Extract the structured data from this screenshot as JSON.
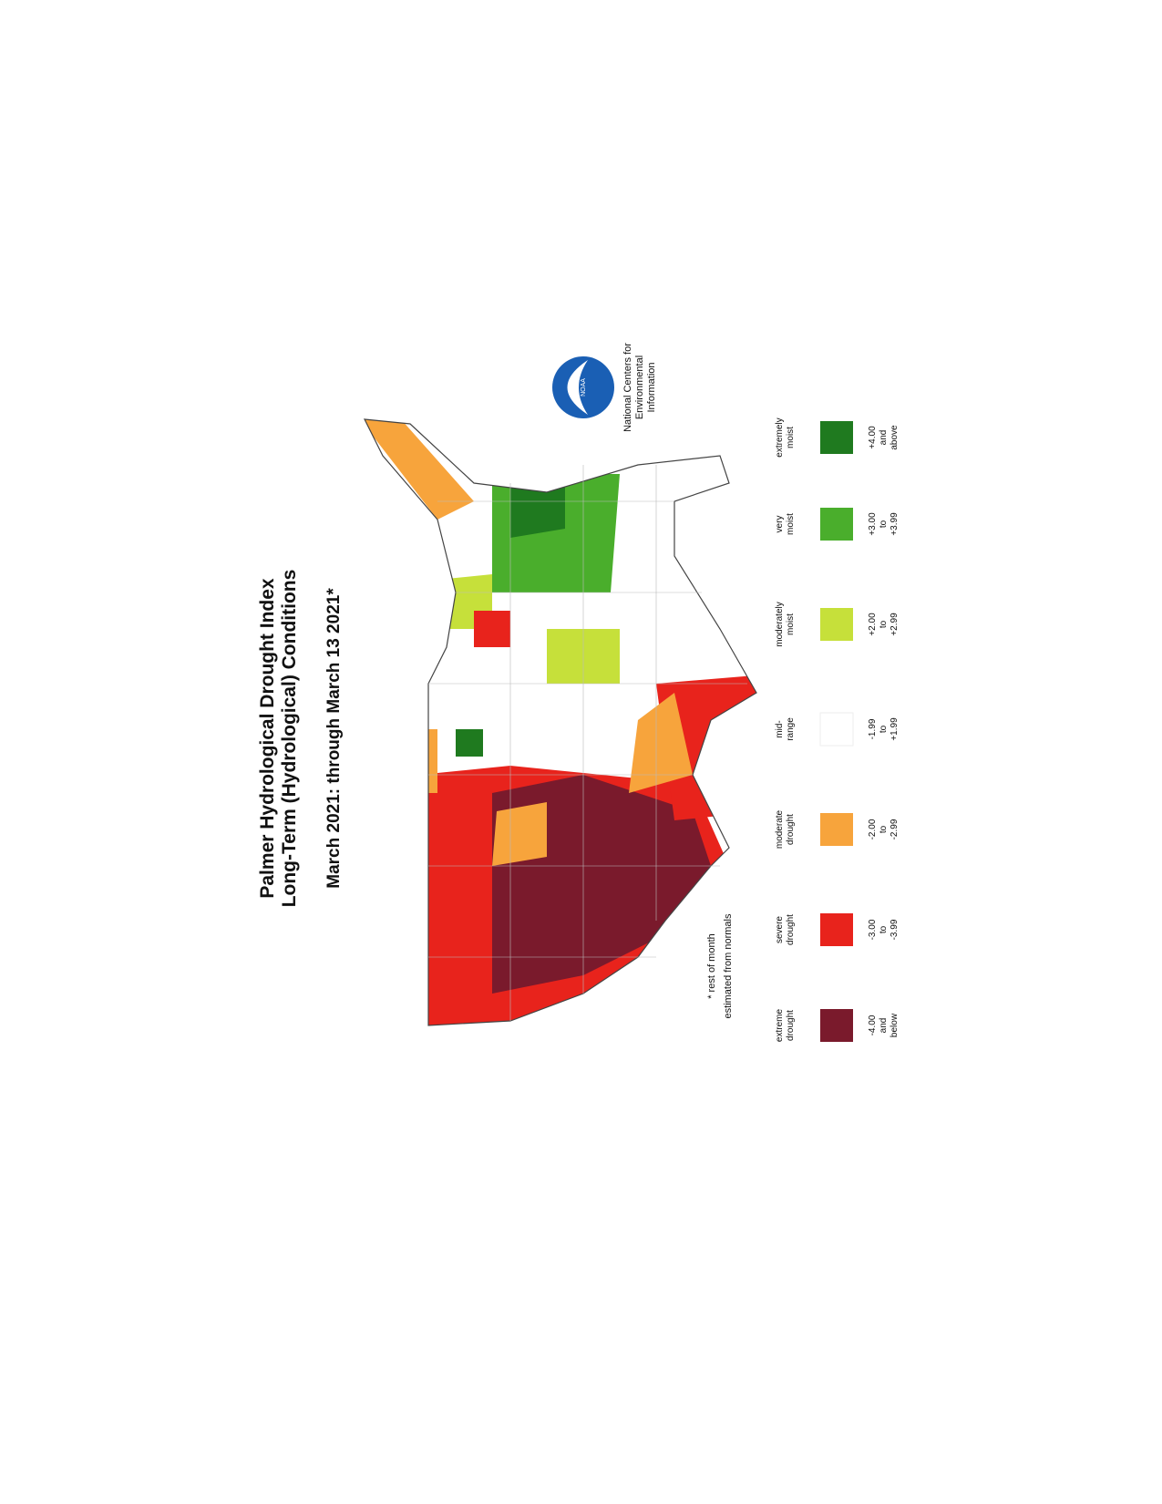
{
  "header": {
    "title_lines": [
      "Palmer Hydrological Drought Index",
      "Long-Term (Hydrological) Conditions"
    ],
    "subtitle": "March 2021: through March 13 2021*"
  },
  "footnote": [
    "* rest of month",
    "estimated from normals"
  ],
  "legend": [
    {
      "label_lines": [
        "extreme",
        "drought"
      ],
      "range_lines": [
        "-4.00",
        "and",
        "below"
      ],
      "color": "#7a1a2c"
    },
    {
      "label_lines": [
        "severe",
        "drought"
      ],
      "range_lines": [
        "-3.00",
        "to",
        "-3.99"
      ],
      "color": "#e8231c"
    },
    {
      "label_lines": [
        "moderate",
        "drought"
      ],
      "range_lines": [
        "-2.00",
        "to",
        "-2.99"
      ],
      "color": "#f7a43c"
    },
    {
      "label_lines": [
        "mid-",
        "range"
      ],
      "range_lines": [
        "-1.99",
        "to",
        "+1.99"
      ],
      "color": "#ffffff"
    },
    {
      "label_lines": [
        "moderately",
        "moist"
      ],
      "range_lines": [
        "+2.00",
        "to",
        "+2.99"
      ],
      "color": "#c6e03a"
    },
    {
      "label_lines": [
        "very",
        "moist"
      ],
      "range_lines": [
        "+3.00",
        "to",
        "+3.99"
      ],
      "color": "#4aae2c"
    },
    {
      "label_lines": [
        "extremely",
        "moist"
      ],
      "range_lines": [
        "+4.00",
        "and",
        "above"
      ],
      "color": "#1f7a1f"
    }
  ],
  "logo": {
    "badge": "NOAA",
    "lines": [
      "National Centers for",
      "Environmental",
      "Information"
    ]
  }
}
